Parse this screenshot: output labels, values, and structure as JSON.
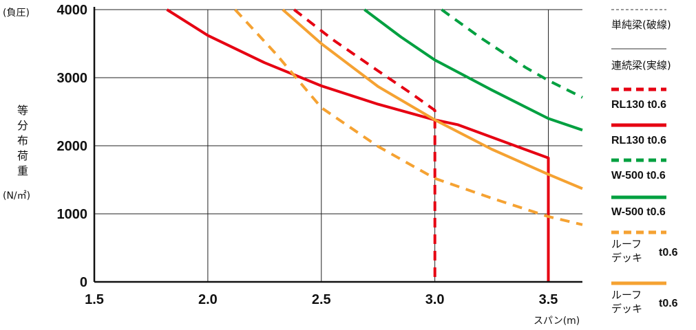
{
  "chart_data": {
    "type": "line",
    "xlabel": "スパン(m)",
    "ylabel_chars": [
      "等",
      "分",
      "布",
      "荷",
      "重"
    ],
    "ylabel_unit": "(N/㎡)",
    "y_corner_label": "(負圧)",
    "xlim": [
      1.5,
      3.65
    ],
    "ylim": [
      0,
      4000
    ],
    "x_ticks": [
      1.5,
      2.0,
      2.5,
      3.0,
      3.5
    ],
    "x_tick_labels": [
      "1.5",
      "2.0",
      "2.5",
      "3.0",
      "3.5"
    ],
    "y_ticks": [
      0,
      1000,
      2000,
      3000,
      4000
    ],
    "y_tick_labels": [
      "0",
      "1000",
      "2000",
      "3000",
      "4000"
    ],
    "grid": true,
    "series": [
      {
        "name": "RL130 t0.6",
        "style": "dashed",
        "color": "#e60012",
        "points": [
          [
            2.38,
            4000
          ],
          [
            2.55,
            3560
          ],
          [
            2.75,
            3100
          ],
          [
            2.9,
            2760
          ],
          [
            3.0,
            2520
          ],
          [
            3.0,
            0
          ]
        ]
      },
      {
        "name": "RL130 t0.6",
        "style": "solid",
        "color": "#e60012",
        "points": [
          [
            1.82,
            4000
          ],
          [
            2.0,
            3620
          ],
          [
            2.25,
            3220
          ],
          [
            2.5,
            2880
          ],
          [
            2.75,
            2610
          ],
          [
            3.0,
            2380
          ],
          [
            3.1,
            2310
          ],
          [
            3.5,
            1820
          ],
          [
            3.5,
            0
          ]
        ]
      },
      {
        "name": "W-500 t0.6",
        "style": "dashed",
        "color": "#00a040",
        "points": [
          [
            3.03,
            4000
          ],
          [
            3.2,
            3590
          ],
          [
            3.4,
            3150
          ],
          [
            3.5,
            2960
          ],
          [
            3.65,
            2710
          ]
        ]
      },
      {
        "name": "W-500 t0.6",
        "style": "solid",
        "color": "#00a040",
        "points": [
          [
            2.69,
            4000
          ],
          [
            2.85,
            3600
          ],
          [
            3.0,
            3260
          ],
          [
            3.25,
            2820
          ],
          [
            3.5,
            2400
          ],
          [
            3.65,
            2230
          ]
        ]
      },
      {
        "name": "ルーフデッキ t0.6",
        "style": "dashed",
        "color": "#f5a232",
        "points": [
          [
            2.12,
            4000
          ],
          [
            2.3,
            3350
          ],
          [
            2.5,
            2560
          ],
          [
            2.75,
            1990
          ],
          [
            3.0,
            1520
          ],
          [
            3.25,
            1230
          ],
          [
            3.5,
            960
          ],
          [
            3.65,
            840
          ]
        ]
      },
      {
        "name": "ルーフデッキ t0.6",
        "style": "solid",
        "color": "#f5a232",
        "points": [
          [
            2.33,
            4000
          ],
          [
            2.5,
            3500
          ],
          [
            2.75,
            2870
          ],
          [
            3.0,
            2380
          ],
          [
            3.25,
            1950
          ],
          [
            3.5,
            1580
          ],
          [
            3.65,
            1370
          ]
        ]
      }
    ],
    "legend": {
      "placement": "right",
      "items": [
        {
          "kind": "thin-dashed",
          "label": "単純梁(破線)"
        },
        {
          "kind": "thin-solid",
          "label": "連続梁(実線)"
        },
        {
          "kind": "series",
          "series_index": 0,
          "line1": "RL130 t0.6"
        },
        {
          "kind": "series",
          "series_index": 1,
          "line1": "RL130 t0.6"
        },
        {
          "kind": "series",
          "series_index": 2,
          "line1": "W-500 t0.6"
        },
        {
          "kind": "series",
          "series_index": 3,
          "line1": "W-500 t0.6"
        },
        {
          "kind": "series2",
          "series_index": 4,
          "line1": "ルーフ",
          "line2": "デッキ",
          "suffix": "t0.6"
        },
        {
          "kind": "series2",
          "series_index": 5,
          "line1": "ルーフ",
          "line2": "デッキ",
          "suffix": "t0.6"
        }
      ]
    }
  }
}
